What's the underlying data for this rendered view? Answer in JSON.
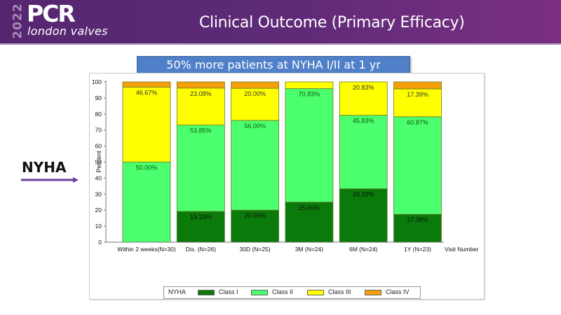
{
  "header": {
    "logo_year": "2022",
    "logo_brand": "PCR",
    "logo_subtitle": "london valves",
    "title": "Clinical Outcome (Primary Efficacy)"
  },
  "banner": {
    "text": "50% more patients at NYHA I/II at 1 yr"
  },
  "side_label": {
    "text": "NYHA",
    "arrow_color": "#6a3d99"
  },
  "colors": {
    "header_bg": "#5e2a78",
    "banner_bg": "#4f80c8",
    "class_i": "#0a7a0a",
    "class_ii": "#4cff6e",
    "class_iii": "#ffff00",
    "class_iv": "#f5a00a"
  },
  "chart_data": {
    "type": "bar",
    "stacked": true,
    "title": "",
    "xlabel": "Visit Number",
    "ylabel": "Percent",
    "ylim": [
      0,
      100
    ],
    "yticks": [
      0,
      10,
      20,
      30,
      40,
      50,
      60,
      70,
      80,
      90,
      100
    ],
    "grid": false,
    "legend_position": "bottom",
    "legend_title": "NYHA",
    "categories": [
      "Within 2 weeks(N=30)",
      "Dis. (N=26)",
      "30D (N=25)",
      "3M (N=24)",
      "6M (N=24)",
      "1Y (N=23)"
    ],
    "series": [
      {
        "name": "Class I",
        "color": "#0a7a0a",
        "values": [
          0,
          19.23,
          20.0,
          25.0,
          33.33,
          17.39
        ],
        "labels": [
          "",
          "19.23%",
          "20.00%",
          "25.00%",
          "33.33%",
          "17.39%"
        ]
      },
      {
        "name": "Class II",
        "color": "#4cff6e",
        "values": [
          50.0,
          53.85,
          56.0,
          70.83,
          45.83,
          60.87
        ],
        "labels": [
          "50.00%",
          "53.85%",
          "56.00%",
          "70.83%",
          "45.83%",
          "60.87%"
        ]
      },
      {
        "name": "Class III",
        "color": "#ffff00",
        "values": [
          46.67,
          23.08,
          20.0,
          4.17,
          20.83,
          17.39
        ],
        "labels": [
          "46.67%",
          "23.08%",
          "20.00%",
          "",
          "20.83%",
          "17.39%"
        ]
      },
      {
        "name": "Class IV",
        "color": "#f5a00a",
        "values": [
          3.33,
          3.84,
          4.0,
          0,
          0,
          4.35
        ],
        "labels": [
          "",
          "",
          "",
          "",
          "",
          ""
        ]
      }
    ]
  }
}
